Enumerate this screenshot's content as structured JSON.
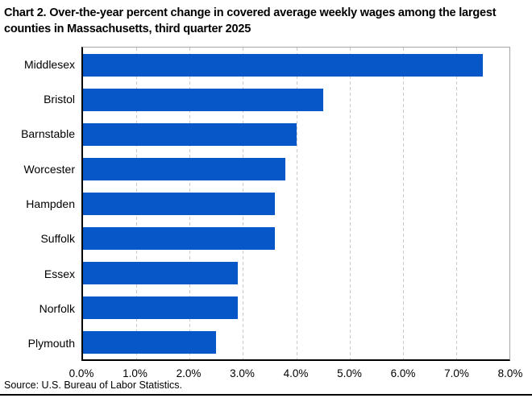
{
  "title": "Chart 2. Over-the-year percent change in covered average weekly wages among the largest counties in Massachusetts, third quarter 2025",
  "source": "Source: U.S. Bureau of Labor Statistics.",
  "colors": {
    "bar": "#0757C8",
    "grid": "#C9C9C9",
    "axis": "#000000",
    "plot_border": "#A6A6A6"
  },
  "chart_data": {
    "type": "bar",
    "orientation": "horizontal",
    "title": "Chart 2. Over-the-year percent change in covered average weekly wages among the largest counties in Massachusetts, third quarter 2025",
    "categories": [
      "Middlesex",
      "Bristol",
      "Barnstable",
      "Worcester",
      "Hampden",
      "Suffolk",
      "Essex",
      "Norfolk",
      "Plymouth"
    ],
    "values": [
      7.5,
      4.5,
      4.0,
      3.8,
      3.6,
      3.6,
      2.9,
      2.9,
      2.5
    ],
    "unit": "%",
    "xlabel": "",
    "ylabel": "",
    "xlim": [
      0,
      8
    ],
    "xtick_step": 1.0,
    "xtick_labels": [
      "0.0%",
      "1.0%",
      "2.0%",
      "3.0%",
      "4.0%",
      "5.0%",
      "6.0%",
      "7.0%",
      "8.0%"
    ],
    "grid": "vertical-dashed",
    "legend": "none"
  }
}
